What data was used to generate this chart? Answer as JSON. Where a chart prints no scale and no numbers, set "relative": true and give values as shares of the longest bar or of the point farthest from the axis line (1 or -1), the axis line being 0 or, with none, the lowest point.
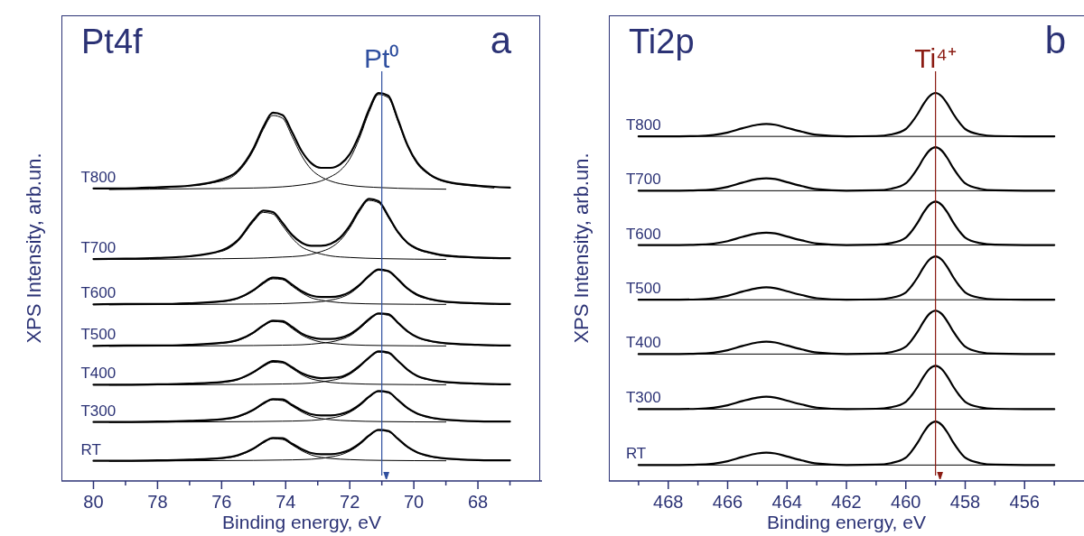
{
  "chart_data": [
    {
      "type": "line",
      "title": "Pt4f",
      "xlabel": "Binding energy, eV",
      "ylabel": "XPS Intensity, arb.un.",
      "relative": true,
      "color": "#000000",
      "xlim": [
        81,
        66
      ],
      "xticks": [
        80,
        {
          "value": 79,
          "label": null
        },
        78,
        {
          "value": 77,
          "label": null
        },
        76,
        {
          "value": 75,
          "label": null
        },
        74,
        {
          "value": 73,
          "label": null
        },
        72,
        {
          "value": 71,
          "label": null
        },
        70,
        {
          "value": 69,
          "label": null
        },
        68,
        {
          "value": 67,
          "label": null
        }
      ],
      "x": [
        80,
        79,
        78,
        77,
        76,
        75.5,
        75,
        74.7,
        74.4,
        74.1,
        73.8,
        73.5,
        73.2,
        72.9,
        72.6,
        72.3,
        72,
        71.7,
        71.4,
        71.1,
        70.8,
        70.5,
        70.2,
        69.9,
        69.5,
        69,
        68,
        67
      ],
      "series": [
        {
          "name": "T800",
          "values": [
            0.754,
            0.754,
            0.757,
            0.761,
            0.777,
            0.799,
            0.858,
            0.912,
            0.949,
            0.943,
            0.899,
            0.85,
            0.819,
            0.807,
            0.807,
            0.816,
            0.842,
            0.892,
            0.957,
            1.0,
            0.993,
            0.932,
            0.866,
            0.821,
            0.79,
            0.772,
            0.761,
            0.756
          ]
        },
        {
          "x": [
            79.5,
            78,
            76,
            75.5,
            75,
            74.7,
            74.4,
            74.1,
            73.8,
            73.5,
            73.2,
            72.9,
            72.6,
            72,
            71,
            69
          ],
          "values": [
            0.752,
            0.755,
            0.773,
            0.795,
            0.853,
            0.906,
            0.942,
            0.935,
            0.888,
            0.838,
            0.803,
            0.784,
            0.773,
            0.762,
            0.756,
            0.752
          ]
        },
        {
          "x": [
            79.5,
            77,
            75,
            74.1,
            73.5,
            72.9,
            72.6,
            72.3,
            72,
            71.7,
            71.4,
            71.1,
            70.8,
            70.5,
            70.2,
            69.9,
            69.5,
            69,
            68,
            67.5
          ],
          "values": [
            0.751,
            0.753,
            0.755,
            0.758,
            0.763,
            0.773,
            0.784,
            0.8,
            0.83,
            0.883,
            0.95,
            0.996,
            0.988,
            0.928,
            0.863,
            0.818,
            0.788,
            0.77,
            0.759,
            0.755
          ]
        },
        {
          "name": "T700",
          "values": [
            0.572,
            0.573,
            0.575,
            0.579,
            0.594,
            0.62,
            0.673,
            0.697,
            0.693,
            0.665,
            0.634,
            0.614,
            0.606,
            0.606,
            0.611,
            0.627,
            0.658,
            0.699,
            0.727,
            0.721,
            0.683,
            0.642,
            0.614,
            0.599,
            0.589,
            0.581,
            0.576,
            0.574
          ]
        },
        {
          "x": [
            79.5,
            78,
            76,
            75.5,
            75,
            74.7,
            74.4,
            74.1,
            73.8,
            73.5,
            73.2,
            72.9,
            72.6,
            72,
            71,
            69
          ],
          "values": [
            0.571,
            0.574,
            0.592,
            0.617,
            0.669,
            0.692,
            0.688,
            0.658,
            0.626,
            0.603,
            0.592,
            0.585,
            0.58,
            0.576,
            0.573,
            0.571
          ]
        },
        {
          "x": [
            79.5,
            77,
            75,
            74.1,
            73.5,
            72.9,
            72.6,
            72.3,
            72,
            71.7,
            71.4,
            71.1,
            70.8,
            70.5,
            70.2,
            69.9,
            69.5,
            69,
            68,
            67.5
          ],
          "values": [
            0.571,
            0.572,
            0.574,
            0.577,
            0.58,
            0.591,
            0.601,
            0.62,
            0.652,
            0.694,
            0.723,
            0.717,
            0.68,
            0.64,
            0.612,
            0.597,
            0.587,
            0.579,
            0.575,
            0.573
          ]
        },
        {
          "name": "T600",
          "values": [
            0.455,
            0.456,
            0.456,
            0.458,
            0.463,
            0.471,
            0.492,
            0.511,
            0.524,
            0.522,
            0.506,
            0.489,
            0.478,
            0.474,
            0.474,
            0.477,
            0.487,
            0.505,
            0.529,
            0.545,
            0.541,
            0.52,
            0.496,
            0.48,
            0.469,
            0.462,
            0.458,
            0.456
          ]
        },
        {
          "x": [
            79.5,
            78,
            76,
            75.5,
            75,
            74.7,
            74.4,
            74.1,
            73.8,
            73.5,
            73.2,
            72.9,
            72.6,
            72,
            71,
            69
          ],
          "values": [
            0.455,
            0.456,
            0.462,
            0.47,
            0.49,
            0.508,
            0.521,
            0.519,
            0.502,
            0.485,
            0.472,
            0.466,
            0.462,
            0.458,
            0.456,
            0.455
          ]
        },
        {
          "x": [
            79.5,
            77,
            75,
            74.1,
            73.5,
            72.9,
            72.6,
            72.3,
            72,
            71.7,
            71.4,
            71.1,
            70.8,
            70.5,
            70.2,
            69.9,
            69.5,
            69,
            68,
            67.5
          ],
          "values": [
            0.454,
            0.455,
            0.456,
            0.457,
            0.459,
            0.462,
            0.466,
            0.472,
            0.483,
            0.502,
            0.526,
            0.543,
            0.54,
            0.518,
            0.495,
            0.478,
            0.468,
            0.461,
            0.457,
            0.456
          ]
        },
        {
          "name": "T500",
          "values": [
            0.348,
            0.349,
            0.349,
            0.351,
            0.356,
            0.363,
            0.383,
            0.401,
            0.413,
            0.412,
            0.397,
            0.38,
            0.37,
            0.366,
            0.366,
            0.369,
            0.378,
            0.395,
            0.417,
            0.432,
            0.43,
            0.408,
            0.386,
            0.371,
            0.361,
            0.355,
            0.351,
            0.349
          ]
        },
        {
          "x": [
            79.5,
            78,
            76,
            75.5,
            75,
            74.7,
            74.4,
            74.1,
            73.8,
            73.5,
            73.2,
            72.9,
            72.6,
            72,
            71,
            69
          ],
          "values": [
            0.348,
            0.349,
            0.355,
            0.362,
            0.381,
            0.399,
            0.411,
            0.409,
            0.393,
            0.376,
            0.365,
            0.358,
            0.355,
            0.351,
            0.349,
            0.348
          ]
        },
        {
          "x": [
            79.5,
            77,
            75,
            74.1,
            73.5,
            72.9,
            72.6,
            72.3,
            72,
            71.7,
            71.4,
            71.1,
            70.8,
            70.5,
            70.2,
            69.9,
            69.5,
            69,
            68,
            67.5
          ],
          "values": [
            0.347,
            0.348,
            0.349,
            0.35,
            0.351,
            0.355,
            0.358,
            0.364,
            0.374,
            0.392,
            0.414,
            0.43,
            0.427,
            0.407,
            0.385,
            0.37,
            0.36,
            0.354,
            0.35,
            0.349
          ]
        },
        {
          "name": "T400",
          "values": [
            0.248,
            0.248,
            0.249,
            0.251,
            0.255,
            0.262,
            0.281,
            0.297,
            0.309,
            0.307,
            0.293,
            0.278,
            0.269,
            0.265,
            0.266,
            0.268,
            0.278,
            0.296,
            0.318,
            0.334,
            0.331,
            0.31,
            0.287,
            0.271,
            0.261,
            0.255,
            0.251,
            0.249
          ]
        },
        {
          "x": [
            79.5,
            78,
            76,
            75.5,
            75,
            74.7,
            74.4,
            74.1,
            73.8,
            73.5,
            73.2,
            72.9,
            72.6,
            72,
            71,
            69
          ],
          "values": [
            0.248,
            0.249,
            0.254,
            0.261,
            0.279,
            0.295,
            0.306,
            0.304,
            0.29,
            0.274,
            0.263,
            0.258,
            0.254,
            0.251,
            0.249,
            0.248
          ]
        },
        {
          "x": [
            79.5,
            77,
            75,
            74.1,
            73.5,
            72.9,
            72.6,
            72.3,
            72,
            71.7,
            71.4,
            71.1,
            70.8,
            70.5,
            70.2,
            69.9,
            69.5,
            69,
            68,
            67.5
          ],
          "values": [
            0.247,
            0.248,
            0.249,
            0.25,
            0.251,
            0.255,
            0.259,
            0.264,
            0.275,
            0.293,
            0.316,
            0.332,
            0.329,
            0.308,
            0.286,
            0.27,
            0.26,
            0.254,
            0.25,
            0.249
          ]
        },
        {
          "name": "T300",
          "values": [
            0.152,
            0.152,
            0.153,
            0.155,
            0.159,
            0.166,
            0.184,
            0.2,
            0.211,
            0.21,
            0.196,
            0.182,
            0.172,
            0.169,
            0.169,
            0.172,
            0.18,
            0.196,
            0.217,
            0.232,
            0.229,
            0.209,
            0.188,
            0.174,
            0.164,
            0.158,
            0.154,
            0.153
          ]
        },
        {
          "x": [
            79.5,
            78,
            76,
            75.5,
            75,
            74.7,
            74.4,
            74.1,
            73.8,
            73.5,
            73.2,
            72.9,
            72.6,
            72,
            71,
            69
          ],
          "values": [
            0.152,
            0.152,
            0.158,
            0.165,
            0.182,
            0.198,
            0.209,
            0.207,
            0.193,
            0.178,
            0.167,
            0.161,
            0.158,
            0.155,
            0.153,
            0.152
          ]
        },
        {
          "x": [
            79.5,
            77,
            75,
            74.1,
            73.5,
            72.9,
            72.6,
            72.3,
            72,
            71.7,
            71.4,
            71.1,
            70.8,
            70.5,
            70.2,
            69.9,
            69.5,
            69,
            68,
            67.5
          ],
          "values": [
            0.151,
            0.152,
            0.153,
            0.154,
            0.155,
            0.158,
            0.162,
            0.167,
            0.177,
            0.193,
            0.215,
            0.23,
            0.227,
            0.208,
            0.187,
            0.173,
            0.163,
            0.157,
            0.154,
            0.153
          ]
        },
        {
          "name": "RT",
          "values": [
            0.052,
            0.052,
            0.053,
            0.055,
            0.059,
            0.066,
            0.084,
            0.1,
            0.111,
            0.11,
            0.096,
            0.082,
            0.072,
            0.069,
            0.069,
            0.072,
            0.08,
            0.096,
            0.117,
            0.132,
            0.129,
            0.109,
            0.088,
            0.074,
            0.064,
            0.058,
            0.054,
            0.053
          ]
        },
        {
          "x": [
            79.5,
            78,
            76,
            75.5,
            75,
            74.7,
            74.4,
            74.1,
            73.8,
            73.5,
            73.2,
            72.9,
            72.6,
            72,
            71,
            69
          ],
          "values": [
            0.052,
            0.052,
            0.058,
            0.065,
            0.082,
            0.098,
            0.109,
            0.107,
            0.093,
            0.078,
            0.067,
            0.061,
            0.058,
            0.055,
            0.053,
            0.052
          ]
        },
        {
          "x": [
            79.5,
            77,
            75,
            74.1,
            73.5,
            72.9,
            72.6,
            72.3,
            72,
            71.7,
            71.4,
            71.1,
            70.8,
            70.5,
            70.2,
            69.9,
            69.5,
            69,
            68,
            67.5
          ],
          "values": [
            0.051,
            0.052,
            0.053,
            0.054,
            0.055,
            0.058,
            0.062,
            0.067,
            0.077,
            0.093,
            0.115,
            0.13,
            0.127,
            0.108,
            0.087,
            0.073,
            0.063,
            0.057,
            0.054,
            0.053
          ]
        }
      ],
      "ref_lines": [
        {
          "axis": "x",
          "value": 71,
          "label": "Pt⁰",
          "color": "#2f4f9f"
        }
      ],
      "annotations": [
        "a"
      ]
    },
    {
      "type": "line",
      "title": "Ti2p",
      "xlabel": "Binding energy, eV",
      "ylabel": "XPS Intensity, arb.un.",
      "relative": true,
      "color": "#000000",
      "xlim": [
        470,
        454
      ],
      "xticks": [
        {
          "value": 469,
          "label": null
        },
        468,
        {
          "value": 467,
          "label": null
        },
        466,
        {
          "value": 465,
          "label": null
        },
        464,
        {
          "value": 463,
          "label": null
        },
        462,
        {
          "value": 461,
          "label": null
        },
        460,
        {
          "value": 459,
          "label": null
        },
        458,
        {
          "value": 457,
          "label": null
        },
        456,
        {
          "value": 455,
          "label": null
        }
      ],
      "x": [
        469,
        468,
        467,
        466,
        465.5,
        465,
        464.7,
        464.4,
        464,
        463.5,
        463,
        462,
        461,
        460.5,
        460,
        459.8,
        459.6,
        459.4,
        459.2,
        459,
        458.8,
        458.6,
        458.4,
        458.2,
        458,
        457.5,
        457,
        456,
        455
      ],
      "series": [
        {
          "name": "T800",
          "values": [
            0.888,
            0.888,
            0.889,
            0.898,
            0.909,
            0.918,
            0.92,
            0.918,
            0.91,
            0.9,
            0.892,
            0.888,
            0.889,
            0.893,
            0.907,
            0.924,
            0.946,
            0.972,
            0.992,
            1.0,
            0.992,
            0.972,
            0.946,
            0.924,
            0.907,
            0.893,
            0.889,
            0.888,
            0.888
          ]
        },
        {
          "x": [
            469,
            455
          ],
          "values": [
            0.888,
            0.888
          ]
        },
        {
          "name": "T700",
          "values": [
            0.748,
            0.748,
            0.749,
            0.758,
            0.769,
            0.778,
            0.78,
            0.778,
            0.77,
            0.76,
            0.752,
            0.748,
            0.749,
            0.753,
            0.767,
            0.784,
            0.806,
            0.832,
            0.852,
            0.86,
            0.852,
            0.832,
            0.806,
            0.784,
            0.767,
            0.753,
            0.749,
            0.748,
            0.748
          ]
        },
        {
          "x": [
            469,
            455
          ],
          "values": [
            0.748,
            0.748
          ]
        },
        {
          "name": "T600",
          "values": [
            0.608,
            0.608,
            0.609,
            0.618,
            0.629,
            0.638,
            0.64,
            0.638,
            0.63,
            0.62,
            0.612,
            0.608,
            0.609,
            0.613,
            0.627,
            0.644,
            0.666,
            0.692,
            0.712,
            0.72,
            0.712,
            0.692,
            0.666,
            0.644,
            0.627,
            0.613,
            0.609,
            0.608,
            0.608
          ]
        },
        {
          "x": [
            469,
            455
          ],
          "values": [
            0.608,
            0.608
          ]
        },
        {
          "name": "T500",
          "values": [
            0.467,
            0.467,
            0.468,
            0.477,
            0.488,
            0.497,
            0.499,
            0.497,
            0.489,
            0.479,
            0.471,
            0.467,
            0.468,
            0.472,
            0.486,
            0.503,
            0.525,
            0.551,
            0.571,
            0.579,
            0.571,
            0.551,
            0.525,
            0.503,
            0.486,
            0.472,
            0.468,
            0.467,
            0.467
          ]
        },
        {
          "x": [
            469,
            455
          ],
          "values": [
            0.467,
            0.467
          ]
        },
        {
          "name": "T400",
          "values": [
            0.327,
            0.327,
            0.328,
            0.337,
            0.348,
            0.357,
            0.359,
            0.357,
            0.349,
            0.339,
            0.331,
            0.327,
            0.328,
            0.332,
            0.346,
            0.363,
            0.385,
            0.411,
            0.431,
            0.439,
            0.431,
            0.411,
            0.385,
            0.363,
            0.346,
            0.332,
            0.328,
            0.327,
            0.327
          ]
        },
        {
          "x": [
            469,
            455
          ],
          "values": [
            0.327,
            0.327
          ]
        },
        {
          "name": "T300",
          "values": [
            0.185,
            0.185,
            0.186,
            0.195,
            0.206,
            0.215,
            0.217,
            0.215,
            0.207,
            0.197,
            0.189,
            0.185,
            0.186,
            0.19,
            0.204,
            0.221,
            0.243,
            0.269,
            0.289,
            0.297,
            0.289,
            0.269,
            0.243,
            0.221,
            0.204,
            0.19,
            0.186,
            0.185,
            0.185
          ]
        },
        {
          "x": [
            469,
            455
          ],
          "values": [
            0.185,
            0.185
          ]
        },
        {
          "name": "RT",
          "values": [
            0.041,
            0.041,
            0.042,
            0.051,
            0.062,
            0.071,
            0.073,
            0.071,
            0.063,
            0.053,
            0.045,
            0.041,
            0.042,
            0.046,
            0.06,
            0.077,
            0.099,
            0.125,
            0.145,
            0.153,
            0.145,
            0.125,
            0.099,
            0.077,
            0.06,
            0.046,
            0.042,
            0.041,
            0.041
          ]
        },
        {
          "x": [
            469,
            455
          ],
          "values": [
            0.041,
            0.041
          ]
        }
      ],
      "ref_lines": [
        {
          "axis": "x",
          "value": 459,
          "label": "Ti⁴⁺",
          "color": "#8b1c13"
        }
      ],
      "annotations": [
        "b"
      ]
    }
  ]
}
